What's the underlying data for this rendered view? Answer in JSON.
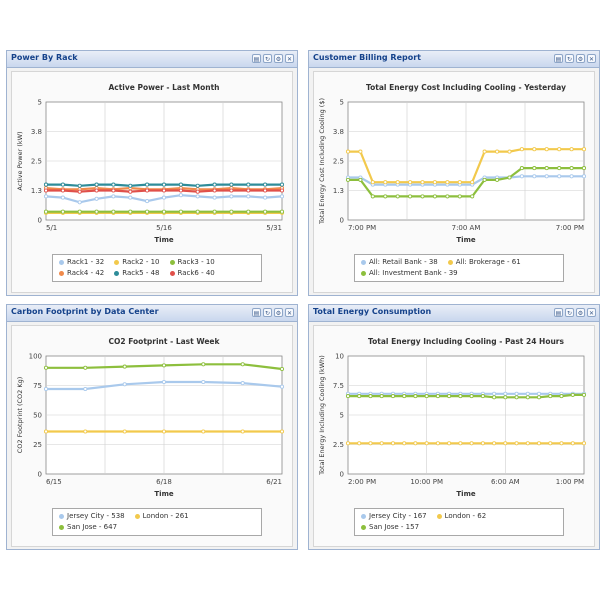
{
  "panels": [
    {
      "title": "Power By Rack",
      "chart_data": {
        "type": "line",
        "title": "Active Power - Last Month",
        "xlabel": "Time",
        "ylabel": "Active Power (kW)",
        "ylim": [
          0,
          5
        ],
        "yticks": [
          "0",
          "1.3",
          "2.5",
          "3.8",
          "5"
        ],
        "xticks": [
          "5/1",
          "5/16",
          "5/31"
        ],
        "grid": true,
        "legend_position": "bottom",
        "series": [
          {
            "name": "Rack1 - 32",
            "color": "#a9c9ec",
            "values": [
              1.0,
              0.95,
              0.75,
              0.9,
              1.0,
              0.95,
              0.8,
              0.95,
              1.05,
              1.0,
              0.95,
              1.0,
              1.0,
              0.95,
              1.0
            ]
          },
          {
            "name": "Rack2 - 10",
            "color": "#f2c94c",
            "values": [
              0.3,
              0.3,
              0.3,
              0.3,
              0.3,
              0.3,
              0.3,
              0.3,
              0.3,
              0.3,
              0.3,
              0.3,
              0.3,
              0.3,
              0.3
            ]
          },
          {
            "name": "Rack3 - 10",
            "color": "#8dbf3d",
            "values": [
              0.35,
              0.35,
              0.35,
              0.35,
              0.35,
              0.35,
              0.35,
              0.35,
              0.35,
              0.35,
              0.35,
              0.35,
              0.35,
              0.35,
              0.35
            ]
          },
          {
            "name": "Rack4 - 42",
            "color": "#f08a4b",
            "values": [
              1.35,
              1.3,
              1.3,
              1.35,
              1.3,
              1.35,
              1.3,
              1.3,
              1.35,
              1.3,
              1.3,
              1.35,
              1.3,
              1.3,
              1.35
            ]
          },
          {
            "name": "Rack5 - 48",
            "color": "#2e8c99",
            "values": [
              1.5,
              1.5,
              1.45,
              1.5,
              1.5,
              1.45,
              1.5,
              1.5,
              1.5,
              1.45,
              1.5,
              1.5,
              1.5,
              1.5,
              1.5
            ]
          },
          {
            "name": "Rack6 - 40",
            "color": "#e0504a",
            "values": [
              1.25,
              1.25,
              1.2,
              1.25,
              1.25,
              1.2,
              1.25,
              1.25,
              1.25,
              1.2,
              1.25,
              1.25,
              1.25,
              1.25,
              1.25
            ]
          }
        ]
      }
    },
    {
      "title": "Customer Billing Report",
      "chart_data": {
        "type": "line",
        "title": "Total Energy Cost Including Cooling - Yesterday",
        "xlabel": "Time",
        "ylabel": "Total Energy Cost Including Cooling ($)",
        "ylim": [
          0,
          5
        ],
        "yticks": [
          "0",
          "1.3",
          "2.5",
          "3.8",
          "5"
        ],
        "xticks": [
          "7:00 PM",
          "7:00 AM",
          "7:00 PM"
        ],
        "grid": true,
        "legend_position": "bottom",
        "series": [
          {
            "name": "All: Retail Bank - 38",
            "color": "#a9c9ec",
            "values": [
              1.8,
              1.8,
              1.5,
              1.5,
              1.5,
              1.5,
              1.5,
              1.5,
              1.5,
              1.5,
              1.5,
              1.8,
              1.8,
              1.8,
              1.85,
              1.85,
              1.85,
              1.85,
              1.85,
              1.85
            ]
          },
          {
            "name": "All: Brokerage - 61",
            "color": "#f2c94c",
            "values": [
              2.9,
              2.9,
              1.6,
              1.6,
              1.6,
              1.6,
              1.6,
              1.6,
              1.6,
              1.6,
              1.6,
              2.9,
              2.9,
              2.9,
              3.0,
              3.0,
              3.0,
              3.0,
              3.0,
              3.0
            ]
          },
          {
            "name": "All: Investment Bank - 39",
            "color": "#8dbf3d",
            "values": [
              1.7,
              1.7,
              1.0,
              1.0,
              1.0,
              1.0,
              1.0,
              1.0,
              1.0,
              1.0,
              1.0,
              1.7,
              1.7,
              1.8,
              2.2,
              2.2,
              2.2,
              2.2,
              2.2,
              2.2
            ]
          }
        ]
      }
    },
    {
      "title": "Carbon Footprint by Data Center",
      "chart_data": {
        "type": "line",
        "title": "CO2 Footprint - Last Week",
        "xlabel": "Time",
        "ylabel": "CO2 Footprint (CO2 Kg)",
        "ylim": [
          0,
          100
        ],
        "yticks": [
          "0",
          "25",
          "50",
          "75",
          "100"
        ],
        "xticks": [
          "6/15",
          "6/18",
          "6/21"
        ],
        "grid": true,
        "legend_position": "bottom",
        "series": [
          {
            "name": "Jersey City - 538",
            "color": "#a9c9ec",
            "values": [
              72,
              72,
              76,
              78,
              78,
              77,
              74
            ]
          },
          {
            "name": "London - 261",
            "color": "#f2c94c",
            "values": [
              36,
              36,
              36,
              36,
              36,
              36,
              36
            ]
          },
          {
            "name": "San Jose - 647",
            "color": "#8dbf3d",
            "values": [
              90,
              90,
              91,
              92,
              93,
              93,
              89
            ]
          }
        ]
      }
    },
    {
      "title": "Total Energy Consumption",
      "chart_data": {
        "type": "line",
        "title": "Total Energy Including Cooling - Past 24 Hours",
        "xlabel": "Time",
        "ylabel": "Total Energy Including Cooling (kWh)",
        "ylim": [
          0,
          10
        ],
        "yticks": [
          "0",
          "2.5",
          "5",
          "7.5",
          "10"
        ],
        "xticks": [
          "2:00 PM",
          "10:00 PM",
          "6:00 AM",
          "1:00 PM"
        ],
        "grid": true,
        "legend_position": "bottom",
        "series": [
          {
            "name": "Jersey City - 167",
            "color": "#a9c9ec",
            "values": [
              6.8,
              6.8,
              6.8,
              6.8,
              6.8,
              6.8,
              6.8,
              6.8,
              6.8,
              6.8,
              6.8,
              6.8,
              6.8,
              6.8,
              6.8,
              6.8,
              6.8,
              6.8,
              6.8,
              6.8,
              6.8,
              6.8
            ]
          },
          {
            "name": "London - 62",
            "color": "#f2c94c",
            "values": [
              2.6,
              2.6,
              2.6,
              2.6,
              2.6,
              2.6,
              2.6,
              2.6,
              2.6,
              2.6,
              2.6,
              2.6,
              2.6,
              2.6,
              2.6,
              2.6,
              2.6,
              2.6,
              2.6,
              2.6,
              2.6,
              2.6
            ]
          },
          {
            "name": "San Jose - 157",
            "color": "#8dbf3d",
            "values": [
              6.6,
              6.6,
              6.6,
              6.6,
              6.6,
              6.6,
              6.6,
              6.6,
              6.6,
              6.6,
              6.6,
              6.6,
              6.6,
              6.5,
              6.5,
              6.5,
              6.5,
              6.5,
              6.6,
              6.6,
              6.7,
              6.7
            ]
          }
        ]
      }
    }
  ]
}
